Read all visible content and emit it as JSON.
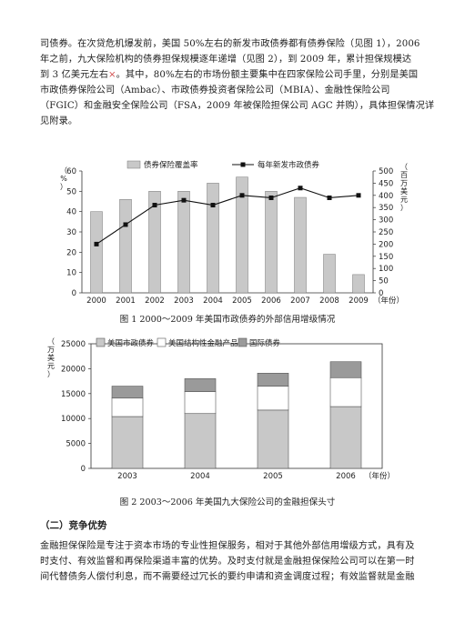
{
  "top_paragraph": {
    "lines": [
      "司债券。在次贷危机爆发前，美国 50%左右的新发市政债券都有债券保险（见图 1），2006",
      "年之前，九大保险机构的债券担保规模逐年递增（见图 2），到 2009 年，累计担保规模达",
      "到 3 亿美元左右",
      "。其中，80%左右的市场份额主要集中在四家保险公司手里，分别是美国",
      "市政债券保险公司（Ambac）、市政债券投资者保险公司（MBIA）、金融性保险公司",
      "（FGIC）和金融安全保险公司（FSA，2009 年被保险担保公司 AGC 并购），具体担保情况详",
      "见附录。"
    ],
    "footnote_mark": "×"
  },
  "figure1": {
    "caption": "图 1  2000～2009 年美国市政债券的外部信用增级情况",
    "chart_data": {
      "type": "bar",
      "categories": [
        "2000",
        "2001",
        "2002",
        "2003",
        "2004",
        "2005",
        "2006",
        "2007",
        "2008",
        "2009"
      ],
      "series": [
        {
          "name": "债券保险覆盖率",
          "type": "bar",
          "axis": "left",
          "values": [
            40,
            46,
            50,
            50,
            54,
            57,
            50,
            47,
            19,
            9
          ]
        },
        {
          "name": "每年新发市政债券",
          "type": "line",
          "axis": "right",
          "values": [
            200,
            280,
            360,
            380,
            360,
            400,
            390,
            430,
            390,
            400
          ]
        }
      ],
      "ylabel_left": "（%）",
      "ylabel_right": "（百万美元）",
      "xlabel": "（年份）",
      "ylim_left": [
        0,
        60
      ],
      "yticks_left": [
        0,
        10,
        20,
        30,
        40,
        50,
        60
      ],
      "ylim_right": [
        0,
        500
      ],
      "yticks_right": [
        0,
        50,
        100,
        150,
        200,
        250,
        300,
        350,
        400,
        450,
        500
      ],
      "legend": "top"
    }
  },
  "figure2": {
    "caption": "图 2  2003～2006 年美国九大保险公司的金融担保头寸",
    "chart_data": {
      "type": "bar",
      "stacked": true,
      "categories": [
        "2003",
        "2004",
        "2005",
        "2006"
      ],
      "series": [
        {
          "name": "美国市政债券",
          "values": [
            10400,
            11000,
            11700,
            12400
          ]
        },
        {
          "name": "美国结构性金融产品",
          "values": [
            3700,
            4400,
            4800,
            5800
          ]
        },
        {
          "name": "国际债券",
          "values": [
            2400,
            2600,
            2600,
            3200
          ]
        }
      ],
      "ylabel": "（万美元）",
      "xlabel": "（年份）",
      "ylim": [
        0,
        25000
      ],
      "yticks": [
        0,
        5000,
        10000,
        15000,
        20000,
        25000
      ],
      "legend": "top"
    }
  },
  "section_heading": "（二）竞争优势",
  "bottom_paragraph": {
    "lines": [
      "金融担保保险是专注于资本市场的专业性担保服务，相对于其他外部信用增级方式，具有及",
      "时支付、有效监督和再保险渠道丰富的优势。及时支付就是金融担保保险公司可以在第一时",
      "间代替债务人偿付利息，而不需要经过冗长的要约申请和资金调度过程；有效监督就是金融"
    ]
  },
  "colors": {
    "bar_gray": "#c8c8c8",
    "bar_white": "#ffffff",
    "bar_dark": "#9a9a9a",
    "line_black": "#111111",
    "text": "#222222",
    "footnote_red": "#d04a4a"
  }
}
